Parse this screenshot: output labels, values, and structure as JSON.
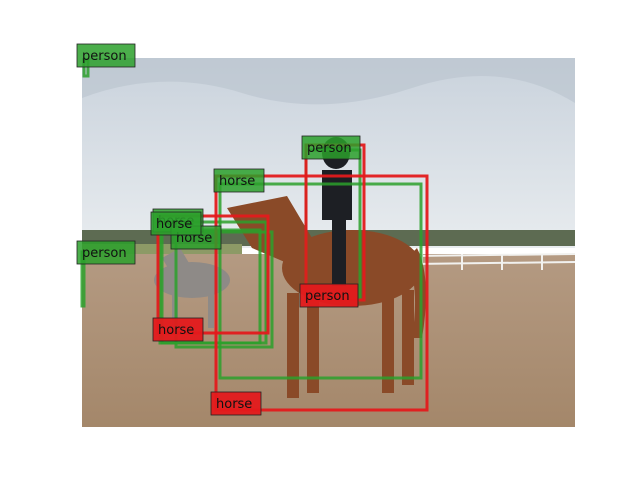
{
  "colors": {
    "prediction": "#2ca02c",
    "ground_truth": "#e31a1c"
  },
  "photo": {
    "content": "photo"
  },
  "detections": [
    {
      "label": "person",
      "kind": "prediction"
    },
    {
      "label": "person",
      "kind": "prediction"
    },
    {
      "label": "person",
      "kind": "prediction"
    },
    {
      "label": "horse",
      "kind": "prediction"
    },
    {
      "label": "horse",
      "kind": "prediction"
    },
    {
      "label": "horse",
      "kind": "prediction"
    },
    {
      "label": "horse",
      "kind": "prediction"
    },
    {
      "label": "person",
      "kind": "ground_truth"
    },
    {
      "label": "horse",
      "kind": "ground_truth"
    },
    {
      "label": "horse",
      "kind": "ground_truth"
    }
  ]
}
